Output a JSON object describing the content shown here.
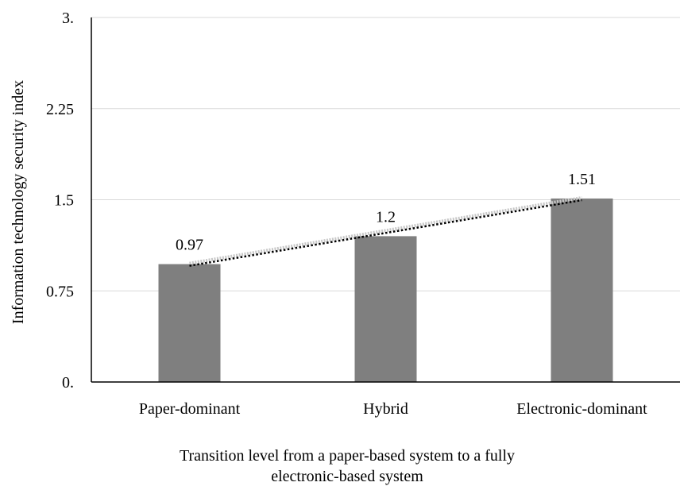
{
  "chart_data": {
    "type": "bar",
    "categories": [
      "Paper-dominant",
      "Hybrid",
      "Electronic-dominant"
    ],
    "values": [
      0.97,
      1.2,
      1.51
    ],
    "data_labels": [
      "0.97",
      "1.2",
      "1.51"
    ],
    "title": "",
    "ylabel": "Information technology security index",
    "xlabel_lines": [
      "Transition level from a paper-based system to a fully",
      "electronic-based system"
    ],
    "ylim": [
      0,
      3
    ],
    "yticks": [
      0,
      0.75,
      1.5,
      2.25,
      3
    ],
    "ytick_labels": [
      "0.",
      "0.75",
      "1.5",
      "2.25",
      "3."
    ],
    "grid": true,
    "trendline": "linear, dotted",
    "colors": {
      "bar": "#7f7f7f",
      "grid": "#d9d9d9",
      "axis": "#000000",
      "trendline": "#000000",
      "trendline_shadow": "#c8c8c8"
    }
  }
}
